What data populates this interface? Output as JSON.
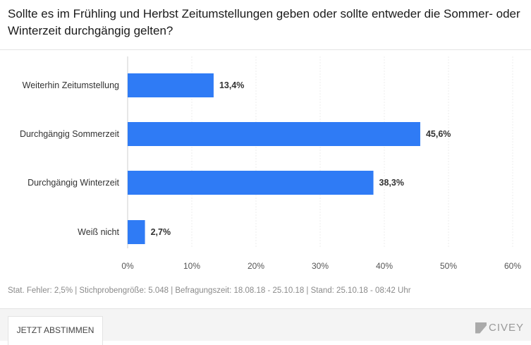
{
  "title": "Sollte es im Frühling und Herbst Zeitumstellungen geben oder sollte entweder die Sommer- oder Winterzeit durchgängig gelten?",
  "chart_data": {
    "type": "bar",
    "orientation": "horizontal",
    "categories": [
      "Weiterhin Zeitumstellung",
      "Durchgängig Sommerzeit",
      "Durchgängig Winterzeit",
      "Weiß nicht"
    ],
    "values": [
      13.4,
      45.6,
      38.3,
      2.7
    ],
    "value_labels": [
      "13,4%",
      "45,6%",
      "38,3%",
      "2,7%"
    ],
    "xlim": [
      0,
      60
    ],
    "ticks": [
      0,
      10,
      20,
      30,
      40,
      50,
      60
    ],
    "tick_labels": [
      "0%",
      "10%",
      "20%",
      "30%",
      "40%",
      "50%",
      "60%"
    ],
    "grid": true,
    "color": "#2f7bf5"
  },
  "meta": "Stat. Fehler: 2,5% | Stichprobengröße: 5.048 | Befragungszeit: 18.08.18 - 25.10.18 | Stand: 25.10.18 - 08:42 Uhr",
  "footer": {
    "button": "JETZT ABSTIMMEN",
    "logo": "CIVEY"
  }
}
